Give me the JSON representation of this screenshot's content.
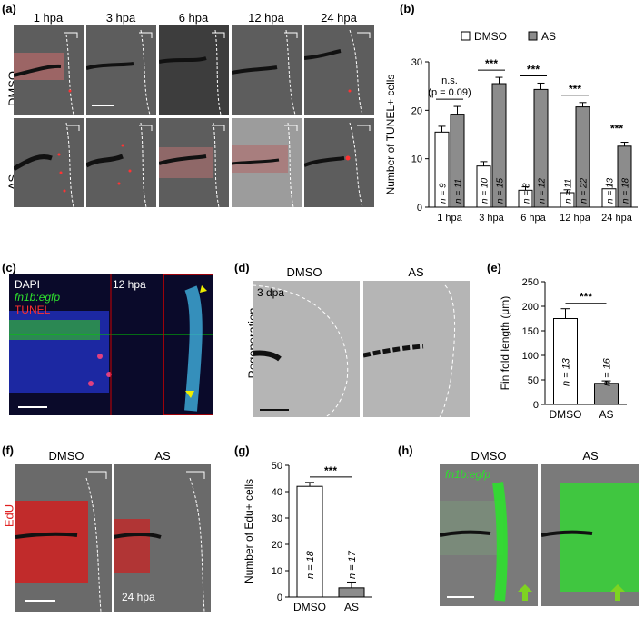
{
  "panels": {
    "a": {
      "label": "(a)",
      "columns": [
        "1 hpa",
        "3 hpa",
        "6 hpa",
        "12 hpa",
        "24 hpa"
      ],
      "rows": [
        "DMSO",
        "AS"
      ]
    },
    "b": {
      "label": "(b)"
    },
    "c": {
      "label": "(c)",
      "stain_dapi": "DAPI",
      "stain_gfp": "fn1b:egfp",
      "stain_tunel": "TUNEL",
      "time": "12 hpa"
    },
    "d": {
      "label": "(d)",
      "col1": "DMSO",
      "col2": "AS",
      "time": "3 dpa",
      "row": "Regeneration"
    },
    "e": {
      "label": "(e)"
    },
    "f": {
      "label": "(f)",
      "col1": "DMSO",
      "col2": "AS",
      "stain": "EdU",
      "time": "24 hpa"
    },
    "g": {
      "label": "(g)"
    },
    "h": {
      "label": "(h)",
      "col1": "DMSO",
      "col2": "AS",
      "stain": "fn1b:egfp"
    }
  },
  "chart_data": [
    {
      "panel": "b",
      "type": "bar",
      "ylabel": "Number of TUNEL+ cells",
      "xlabel": "",
      "ylim": [
        0,
        30
      ],
      "yticks": [
        0,
        10,
        20,
        30
      ],
      "categories": [
        "1 hpa",
        "3 hpa",
        "6 hpa",
        "12 hpa",
        "24 hpa"
      ],
      "legend": "top",
      "series": [
        {
          "name": "DMSO",
          "color": "#ffffff",
          "values": [
            15.5,
            8.5,
            3.5,
            3.0,
            3.8
          ],
          "errors": [
            1.2,
            0.9,
            0.7,
            0.6,
            0.9
          ],
          "n_labels": [
            "n = 9",
            "n = 10",
            "n = 8",
            "n = 11",
            "n = 13"
          ]
        },
        {
          "name": "AS",
          "color": "#8c8c8c",
          "values": [
            19.2,
            25.5,
            24.3,
            20.7,
            12.6
          ],
          "errors": [
            1.6,
            1.3,
            1.3,
            0.9,
            0.8
          ],
          "n_labels": [
            "n = 11",
            "n = 15",
            "n = 12",
            "n = 22",
            "n = 18"
          ]
        }
      ],
      "significance": [
        {
          "text": "n.s.",
          "sub": "(p = 0.09)"
        },
        {
          "text": "***"
        },
        {
          "text": "***"
        },
        {
          "text": "***"
        },
        {
          "text": "***"
        }
      ]
    },
    {
      "panel": "e",
      "type": "bar",
      "ylabel": "Fin fold length (μm)",
      "xlabel": "",
      "ylim": [
        0,
        250
      ],
      "yticks": [
        0,
        50,
        100,
        150,
        200,
        250
      ],
      "categories": [
        "DMSO",
        "AS"
      ],
      "values": [
        175,
        43
      ],
      "errors": [
        20,
        5
      ],
      "colors": [
        "#ffffff",
        "#8c8c8c"
      ],
      "n_labels": [
        "n = 13",
        "n = 16"
      ],
      "significance": "***"
    },
    {
      "panel": "g",
      "type": "bar",
      "ylabel": "Number of Edu+ cells",
      "xlabel": "",
      "ylim": [
        0,
        50
      ],
      "yticks": [
        0,
        10,
        20,
        30,
        40,
        50
      ],
      "categories": [
        "DMSO",
        "AS"
      ],
      "values": [
        42,
        3.5
      ],
      "errors": [
        1.5,
        2.2
      ],
      "colors": [
        "#ffffff",
        "#8c8c8c"
      ],
      "n_labels": [
        "n = 18",
        "n = 17"
      ],
      "significance": "***"
    }
  ]
}
